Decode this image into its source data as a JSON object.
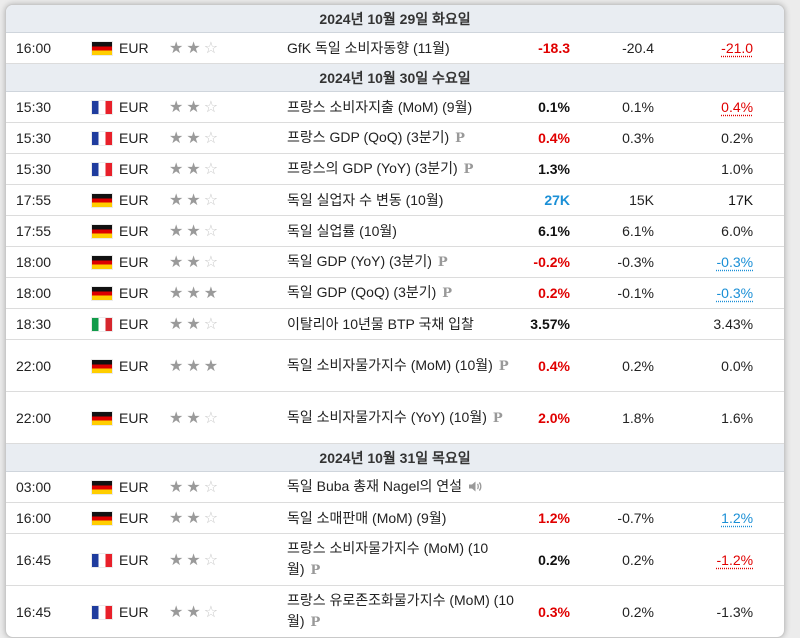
{
  "rows": [
    {
      "type": "day",
      "label": "2024년 10월 29일 화요일"
    },
    {
      "type": "event",
      "time": "16:00",
      "flag": "de",
      "currency": "EUR",
      "stars": 2,
      "event": "GfK 독일 소비자동향 (11월)",
      "p": false,
      "speech": false,
      "actual": "-18.3",
      "actual_color": "red",
      "forecast": "-20.4",
      "previous": "-21.0",
      "previous_style": "ul-red"
    },
    {
      "type": "day",
      "label": "2024년 10월 30일 수요일"
    },
    {
      "type": "event",
      "time": "15:30",
      "flag": "fr",
      "currency": "EUR",
      "stars": 2,
      "event": "프랑스 소비자지출 (MoM) (9월)",
      "p": false,
      "speech": false,
      "actual": "0.1%",
      "actual_color": "black",
      "forecast": "0.1%",
      "previous": "0.4%",
      "previous_style": "ul-red"
    },
    {
      "type": "event",
      "time": "15:30",
      "flag": "fr",
      "currency": "EUR",
      "stars": 2,
      "event": "프랑스 GDP (QoQ) (3분기)",
      "p": true,
      "speech": false,
      "actual": "0.4%",
      "actual_color": "red",
      "forecast": "0.3%",
      "previous": "0.2%",
      "previous_style": "plain"
    },
    {
      "type": "event",
      "time": "15:30",
      "flag": "fr",
      "currency": "EUR",
      "stars": 2,
      "event": "프랑스의 GDP (YoY) (3분기)",
      "p": true,
      "speech": false,
      "actual": "1.3%",
      "actual_color": "black",
      "forecast": "",
      "previous": "1.0%",
      "previous_style": "plain"
    },
    {
      "type": "event",
      "time": "17:55",
      "flag": "de",
      "currency": "EUR",
      "stars": 2,
      "event": "독일 실업자 수 변동 (10월)",
      "p": false,
      "speech": false,
      "actual": "27K",
      "actual_color": "blue",
      "forecast": "15K",
      "previous": "17K",
      "previous_style": "black"
    },
    {
      "type": "event",
      "time": "17:55",
      "flag": "de",
      "currency": "EUR",
      "stars": 2,
      "event": "독일 실업률 (10월)",
      "p": false,
      "speech": false,
      "actual": "6.1%",
      "actual_color": "black",
      "forecast": "6.1%",
      "previous": "6.0%",
      "previous_style": "plain"
    },
    {
      "type": "event",
      "time": "18:00",
      "flag": "de",
      "currency": "EUR",
      "stars": 2,
      "event": "독일 GDP (YoY) (3분기)",
      "p": true,
      "speech": false,
      "actual": "-0.2%",
      "actual_color": "red",
      "forecast": "-0.3%",
      "previous": "-0.3%",
      "previous_style": "ul-blue"
    },
    {
      "type": "event",
      "time": "18:00",
      "flag": "de",
      "currency": "EUR",
      "stars": 3,
      "event": "독일 GDP (QoQ) (3분기)",
      "p": true,
      "speech": false,
      "actual": "0.2%",
      "actual_color": "red",
      "forecast": "-0.1%",
      "previous": "-0.3%",
      "previous_style": "ul-blue"
    },
    {
      "type": "event",
      "time": "18:30",
      "flag": "it",
      "currency": "EUR",
      "stars": 2,
      "event": "이탈리아 10년물 BTP 국채 입찰",
      "p": false,
      "speech": false,
      "actual": "3.57%",
      "actual_color": "black",
      "forecast": "",
      "previous": "3.43%",
      "previous_style": "plain"
    },
    {
      "type": "event",
      "time": "22:00",
      "flag": "de",
      "currency": "EUR",
      "stars": 3,
      "event": "독일 소비자물가지수 (MoM) (10월)",
      "p": true,
      "speech": false,
      "actual": "0.4%",
      "actual_color": "red",
      "forecast": "0.2%",
      "previous": "0.0%",
      "previous_style": "plain",
      "tall": true
    },
    {
      "type": "event",
      "time": "22:00",
      "flag": "de",
      "currency": "EUR",
      "stars": 2,
      "event": "독일 소비자물가지수 (YoY) (10월)",
      "p": true,
      "speech": false,
      "actual": "2.0%",
      "actual_color": "red",
      "forecast": "1.8%",
      "previous": "1.6%",
      "previous_style": "plain",
      "tall": true
    },
    {
      "type": "day",
      "label": "2024년 10월 31일 목요일"
    },
    {
      "type": "event",
      "time": "03:00",
      "flag": "de",
      "currency": "EUR",
      "stars": 2,
      "event": "독일 Buba 총재 Nagel의 연설",
      "p": false,
      "speech": true,
      "actual": "",
      "actual_color": "black",
      "forecast": "",
      "previous": "",
      "previous_style": "plain"
    },
    {
      "type": "event",
      "time": "16:00",
      "flag": "de",
      "currency": "EUR",
      "stars": 2,
      "event": "독일 소매판매 (MoM) (9월)",
      "p": false,
      "speech": false,
      "actual": "1.2%",
      "actual_color": "red",
      "forecast": "-0.7%",
      "previous": "1.2%",
      "previous_style": "ul-blue"
    },
    {
      "type": "event",
      "time": "16:45",
      "flag": "fr",
      "currency": "EUR",
      "stars": 2,
      "event": "프랑스 소비자물가지수 (MoM) (10월)",
      "p": true,
      "speech": false,
      "actual": "0.2%",
      "actual_color": "black",
      "forecast": "0.2%",
      "previous": "-1.2%",
      "previous_style": "ul-red",
      "tall": true
    },
    {
      "type": "event",
      "time": "16:45",
      "flag": "fr",
      "currency": "EUR",
      "stars": 2,
      "event": "프랑스 유로존조화물가지수 (MoM) (10월)",
      "p": true,
      "speech": false,
      "actual": "0.3%",
      "actual_color": "red",
      "forecast": "0.2%",
      "previous": "-1.3%",
      "previous_style": "plain",
      "tall": true
    }
  ]
}
